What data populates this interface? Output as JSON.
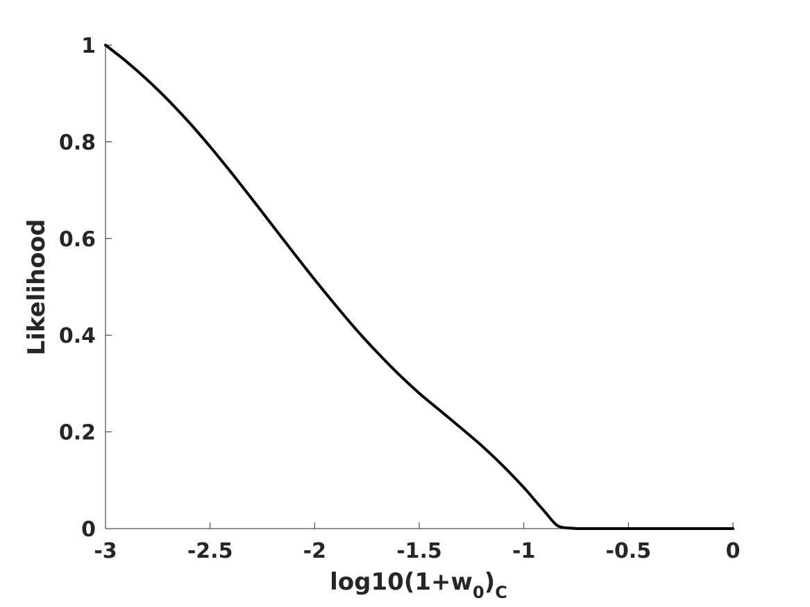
{
  "chart_data": {
    "type": "line",
    "xlabel": {
      "base": "log10(1+w",
      "subscript": "0",
      "close": ")",
      "subscript2": "C"
    },
    "ylabel": "Likelihood",
    "xlim": [
      -3,
      0
    ],
    "ylim": [
      0,
      1
    ],
    "xticks": [
      "-3",
      "-2.5",
      "-2",
      "-1.5",
      "-1",
      "-0.5",
      "0"
    ],
    "yticks": [
      "0",
      "0.2",
      "0.4",
      "0.6",
      "0.8",
      "1"
    ],
    "grid": false,
    "series": [
      {
        "color": "#000000",
        "x": [
          -3.0,
          -2.9,
          -2.8,
          -2.7,
          -2.6,
          -2.5,
          -2.4,
          -2.3,
          -2.2,
          -2.1,
          -2.0,
          -1.9,
          -1.8,
          -1.7,
          -1.6,
          -1.5,
          -1.4,
          -1.3,
          -1.2,
          -1.1,
          -1.0,
          -0.95,
          -0.9,
          -0.85,
          -0.82,
          -0.78,
          -0.75,
          -0.72,
          -0.7,
          -0.65,
          -0.6,
          -0.5,
          -0.4,
          -0.3,
          -0.2,
          -0.1,
          0.0
        ],
        "y": [
          1.0,
          0.966,
          0.928,
          0.886,
          0.84,
          0.79,
          0.737,
          0.682,
          0.626,
          0.57,
          0.515,
          0.462,
          0.411,
          0.364,
          0.32,
          0.28,
          0.244,
          0.208,
          0.171,
          0.13,
          0.085,
          0.06,
          0.035,
          0.01,
          0.003,
          0.001,
          0.0002,
          0.0,
          0.0,
          0.0,
          0.0,
          0.0,
          0.0,
          0.0,
          0.0,
          0.0,
          0.0
        ]
      }
    ]
  }
}
